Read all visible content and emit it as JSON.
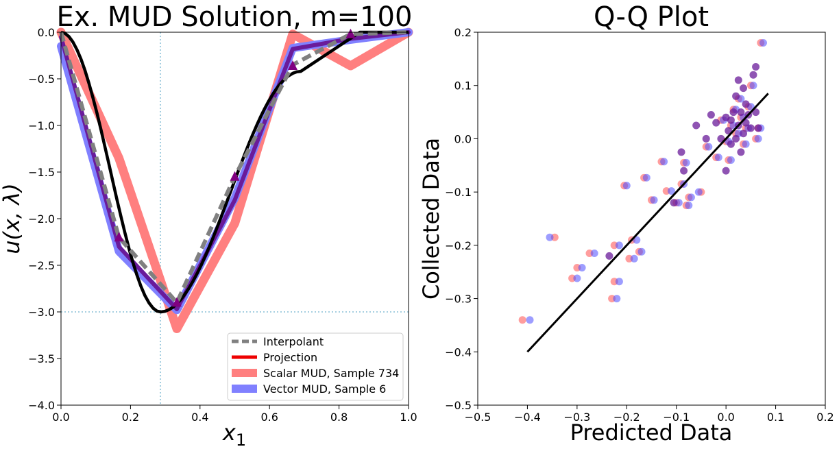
{
  "chart_data": [
    {
      "type": "line",
      "title": "Ex. MUD Solution, m=100",
      "xlabel": "x",
      "xlabel_sub": "1",
      "ylabel": "u(x, λ)",
      "xlim": [
        0,
        1
      ],
      "ylim": [
        -4,
        0
      ],
      "xticks": [
        0,
        0.2,
        0.4,
        0.6,
        0.8,
        1.0
      ],
      "xtick_labels": [
        "0.0",
        "0.2",
        "0.4",
        "0.6",
        "0.8",
        "1.0"
      ],
      "yticks": [
        0,
        -0.5,
        -1.0,
        -1.5,
        -2.0,
        -2.5,
        -3.0,
        -3.5,
        -4.0
      ],
      "ytick_labels": [
        "0.0",
        "−0.5",
        "−1.0",
        "−1.5",
        "−2.0",
        "−2.5",
        "−3.0",
        "−3.5",
        "−4.0"
      ],
      "reference_lines": {
        "x": 0.286,
        "y": -3.0,
        "color": "#87bfd6"
      },
      "legend_position": "lower-right",
      "true_curve": {
        "color": "#000000",
        "x0": 0.286,
        "ymin": -3.0,
        "breakpoint_x": 0.69,
        "right_segment": {
          "x": [
            0.69,
            0.86,
            1.0
          ],
          "y": [
            -0.42,
            0.0,
            0.0
          ]
        }
      },
      "series": [
        {
          "name": "Interpolant",
          "color": "#808080",
          "dash": true,
          "x": [
            0,
            0.1667,
            0.3333,
            0.5,
            0.6667,
            0.8333,
            1.0
          ],
          "y": [
            0,
            -2.2,
            -2.9,
            -1.55,
            -0.35,
            -0.02,
            0
          ]
        },
        {
          "name": "Projection",
          "color": "#ee0000",
          "x": [
            0,
            0.1667,
            0.3333,
            0.5,
            0.6667,
            0.8333,
            1.0
          ],
          "y": [
            0,
            -2.25,
            -2.95,
            -1.75,
            -0.2,
            -0.06,
            0
          ]
        },
        {
          "name": "Scalar MUD, Sample 734",
          "color": "#ff7f7f",
          "x": [
            0,
            0.1667,
            0.3333,
            0.5,
            0.6667,
            0.8333,
            1.0
          ],
          "y": [
            0,
            -1.35,
            -3.18,
            -2.05,
            -0.02,
            -0.36,
            0
          ]
        },
        {
          "name": "Vector MUD, Sample 6",
          "color": "#8080ff",
          "x": [
            0,
            0.1667,
            0.3333,
            0.5,
            0.6667,
            0.8333,
            1.0
          ],
          "y": [
            -0.15,
            -2.35,
            -2.98,
            -1.78,
            -0.17,
            -0.08,
            0
          ]
        },
        {
          "name": "",
          "color": "#6a1b9a",
          "x": [
            0,
            0.1667,
            0.3333,
            0.5,
            0.6667,
            0.8333,
            1.0
          ],
          "y": [
            -0.05,
            -2.3,
            -2.97,
            -1.8,
            -0.18,
            -0.07,
            0
          ]
        }
      ],
      "triangle_markers": {
        "color": "#800080",
        "x": [
          0.1667,
          0.3333,
          0.5,
          0.6667,
          0.8333
        ],
        "y": [
          -2.2,
          -2.9,
          -1.55,
          -0.36,
          -0.02
        ]
      }
    },
    {
      "type": "scatter",
      "title": "Q-Q Plot",
      "xlabel": "Predicted Data",
      "ylabel": "Collected Data",
      "xlim": [
        -0.5,
        0.2
      ],
      "ylim": [
        -0.5,
        0.2
      ],
      "xticks": [
        -0.5,
        -0.4,
        -0.3,
        -0.2,
        -0.1,
        0.0,
        0.1,
        0.2
      ],
      "xtick_labels": [
        "−0.5",
        "−0.4",
        "−0.3",
        "−0.2",
        "−0.1",
        "0.0",
        "0.1",
        "0.2"
      ],
      "yticks": [
        0.2,
        0.1,
        0.0,
        -0.1,
        -0.2,
        -0.3,
        -0.4,
        -0.5
      ],
      "ytick_labels": [
        "0.2",
        "0.1",
        "0.0",
        "−0.1",
        "−0.2",
        "−0.3",
        "−0.4",
        "−0.5"
      ],
      "reference_line": {
        "x": [
          -0.4,
          0.085
        ],
        "y": [
          -0.4,
          0.085
        ],
        "color": "#000000"
      },
      "series": [
        {
          "name": "",
          "color": "#ff4d4d",
          "opacity": 0.55,
          "x": [
            -0.41,
            -0.345,
            -0.31,
            -0.3,
            -0.275,
            -0.23,
            -0.225,
            -0.225,
            -0.205,
            -0.195,
            -0.19,
            -0.175,
            -0.165,
            -0.15,
            -0.13,
            -0.12,
            -0.1,
            -0.09,
            -0.085,
            -0.08,
            -0.075,
            -0.05,
            -0.04,
            -0.02,
            -0.01,
            0.0,
            0.005,
            0.01,
            0.015,
            0.02,
            0.025,
            0.03,
            0.035,
            0.04,
            0.045,
            0.05,
            0.06,
            0.065,
            0.07
          ],
          "y": [
            -0.34,
            -0.185,
            -0.262,
            -0.242,
            -0.215,
            -0.3,
            -0.268,
            -0.2,
            -0.088,
            -0.225,
            -0.19,
            -0.212,
            -0.073,
            -0.115,
            -0.043,
            -0.098,
            -0.12,
            -0.085,
            -0.045,
            -0.125,
            -0.11,
            -0.1,
            -0.015,
            -0.035,
            0.035,
            -0.005,
            -0.04,
            0.025,
            0.055,
            0.01,
            0.075,
            0.04,
            -0.01,
            0.02,
            0.06,
            0.1,
            0.0,
            0.02,
            0.18
          ]
        },
        {
          "name": "",
          "color": "#4d4dff",
          "opacity": 0.55,
          "x": [
            -0.395,
            -0.355,
            -0.3,
            -0.29,
            -0.265,
            -0.22,
            -0.215,
            -0.215,
            -0.2,
            -0.185,
            -0.18,
            -0.17,
            -0.16,
            -0.145,
            -0.125,
            -0.11,
            -0.095,
            -0.085,
            -0.08,
            -0.075,
            -0.07,
            -0.055,
            -0.035,
            -0.015,
            -0.005,
            0.005,
            0.01,
            0.015,
            0.02,
            0.025,
            0.03,
            0.035,
            0.04,
            0.045,
            0.05,
            0.055,
            0.065,
            0.07,
            0.075
          ],
          "y": [
            -0.34,
            -0.185,
            -0.262,
            -0.242,
            -0.215,
            -0.3,
            -0.268,
            -0.2,
            -0.088,
            -0.225,
            -0.19,
            -0.212,
            -0.073,
            -0.115,
            -0.043,
            -0.098,
            -0.12,
            -0.085,
            -0.045,
            -0.125,
            -0.11,
            -0.1,
            -0.015,
            -0.035,
            0.035,
            -0.005,
            -0.04,
            0.025,
            0.055,
            0.01,
            0.075,
            0.04,
            -0.01,
            0.02,
            0.06,
            0.1,
            0.0,
            0.02,
            0.18
          ]
        },
        {
          "name": "",
          "color": "#6a1b9a",
          "opacity": 0.75,
          "x": [
            -0.235,
            -0.105,
            -0.09,
            -0.085,
            -0.06,
            -0.04,
            -0.03,
            -0.02,
            -0.01,
            0.0,
            0.0,
            0.005,
            0.01,
            0.01,
            0.015,
            0.02,
            0.02,
            0.025,
            0.025,
            0.03,
            0.03,
            0.035,
            0.035,
            0.04,
            0.04,
            0.045,
            0.05,
            0.055,
            0.06,
            0.06,
            0.065
          ],
          "y": [
            -0.22,
            -0.12,
            -0.025,
            -0.06,
            0.025,
            0.0,
            0.045,
            0.03,
            0.0,
            -0.06,
            0.04,
            0.015,
            0.035,
            -0.01,
            0.05,
            0.08,
            0.0,
            0.11,
            0.025,
            0.05,
            -0.025,
            0.095,
            0.01,
            0.03,
            0.065,
            0.045,
            0.02,
            0.12,
            0.135,
            0.05,
            0.02
          ]
        }
      ]
    }
  ]
}
